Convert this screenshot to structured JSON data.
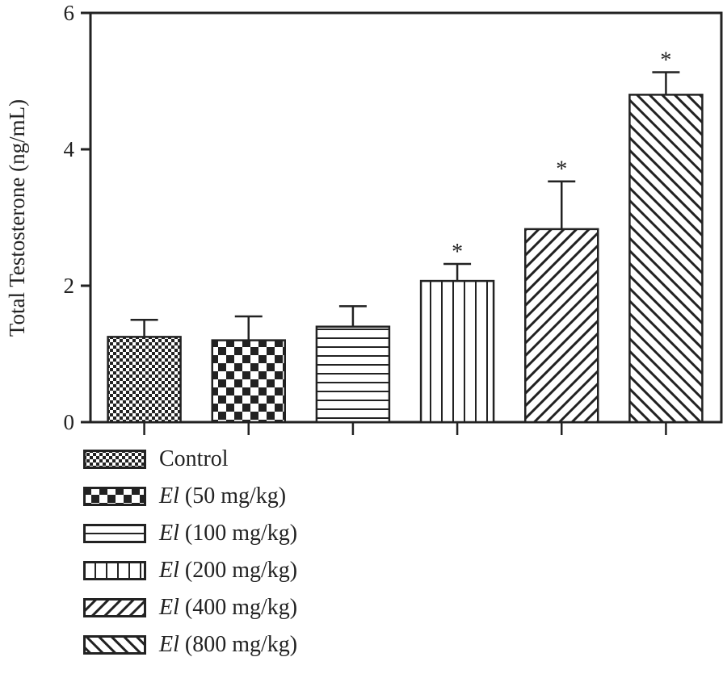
{
  "chart_data": {
    "type": "bar",
    "ylabel": "Total Testosterone (ng/mL)",
    "ylim": [
      0,
      6
    ],
    "yticks": [
      "0",
      "2",
      "4",
      "6"
    ],
    "grid": false,
    "legend_position": "bottom-left",
    "series": [
      {
        "name": "Control",
        "name_italic": "",
        "name_rest": "Control",
        "value": 1.25,
        "error": 0.25,
        "significance": "",
        "pattern": "fine-check"
      },
      {
        "name": "El (50 mg/kg)",
        "name_italic": "El",
        "name_rest": " (50 mg/kg)",
        "value": 1.2,
        "error": 0.35,
        "significance": "",
        "pattern": "coarse-check"
      },
      {
        "name": "El (100 mg/kg)",
        "name_italic": "El",
        "name_rest": " (100 mg/kg)",
        "value": 1.4,
        "error": 0.3,
        "significance": "",
        "pattern": "horizontal"
      },
      {
        "name": "El (200 mg/kg)",
        "name_italic": "El",
        "name_rest": " (200 mg/kg)",
        "value": 2.07,
        "error": 0.25,
        "significance": "*",
        "pattern": "vertical"
      },
      {
        "name": "El (400 mg/kg)",
        "name_italic": "El",
        "name_rest": " (400 mg/kg)",
        "value": 2.83,
        "error": 0.7,
        "significance": "*",
        "pattern": "diag-up"
      },
      {
        "name": "El (800 mg/kg)",
        "name_italic": "El",
        "name_rest": " (800 mg/kg)",
        "value": 4.8,
        "error": 0.33,
        "significance": "*",
        "pattern": "diag-down"
      }
    ]
  },
  "colors": {
    "ink": "#222222",
    "background": "#ffffff"
  }
}
